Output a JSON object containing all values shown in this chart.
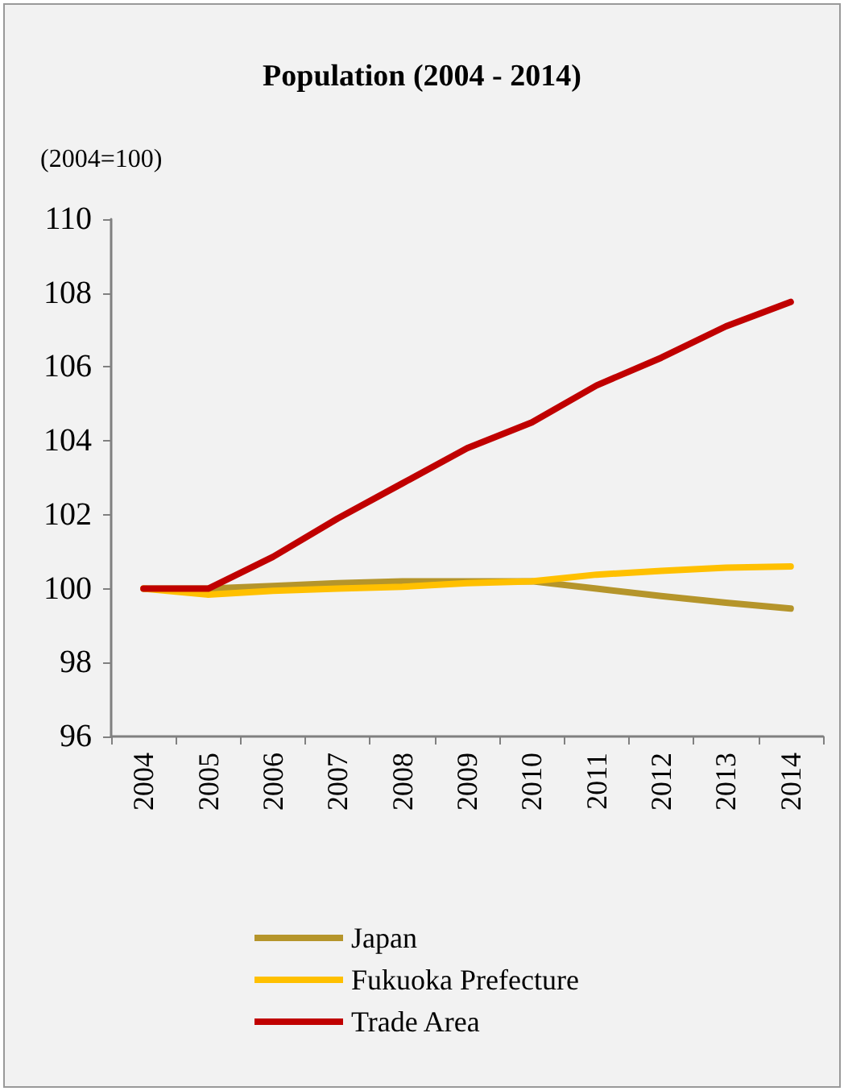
{
  "chart_data": {
    "type": "line",
    "title": "Population (2004 - 2014)",
    "ylabel": "(2004=100)",
    "categories": [
      "2004",
      "2005",
      "2006",
      "2007",
      "2008",
      "2009",
      "2010",
      "2011",
      "2012",
      "2013",
      "2014"
    ],
    "series": [
      {
        "name": "Japan",
        "color": "#b5952b",
        "values": [
          100,
          100.0,
          100.07,
          100.15,
          100.2,
          100.2,
          100.2,
          100.0,
          99.8,
          99.62,
          99.46
        ]
      },
      {
        "name": "Fukuoka Prefecture",
        "color": "#ffc000",
        "values": [
          100,
          99.84,
          99.94,
          100.0,
          100.05,
          100.15,
          100.2,
          100.38,
          100.48,
          100.57,
          100.6
        ]
      },
      {
        "name": "Trade Area",
        "color": "#c00000",
        "values": [
          100,
          100.0,
          100.86,
          101.9,
          102.85,
          103.8,
          104.5,
          105.5,
          106.25,
          107.1,
          107.76
        ]
      }
    ],
    "ylim": [
      96,
      110
    ],
    "yticks": [
      96,
      98,
      100,
      102,
      104,
      106,
      108,
      110
    ],
    "grid": false,
    "legend": "bottom",
    "marker": "none",
    "line_style": "solid"
  }
}
